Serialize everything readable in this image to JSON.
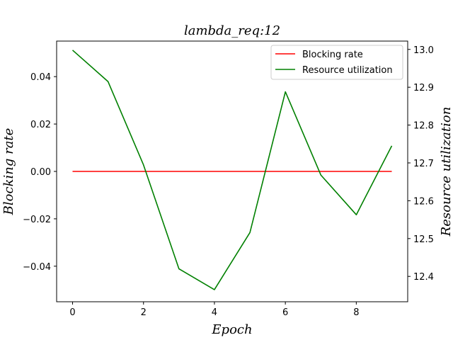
{
  "chart_data": {
    "type": "line",
    "title": "lambda_req:12",
    "xlabel": "Epoch",
    "ylabel_left": "Blocking rate",
    "ylabel_right": "Resource utilization",
    "x": [
      0,
      1,
      2,
      3,
      4,
      5,
      6,
      7,
      8,
      9
    ],
    "xlim": [
      -0.45,
      9.45
    ],
    "xticks": [
      0,
      2,
      4,
      6,
      8
    ],
    "ylim_left": [
      -0.055,
      0.055
    ],
    "yticks_left": [
      -0.04,
      -0.02,
      0.0,
      0.02,
      0.04
    ],
    "ylim_right": [
      12.333,
      13.022
    ],
    "yticks_right": [
      12.4,
      12.5,
      12.6,
      12.7,
      12.8,
      12.9,
      13.0
    ],
    "series": [
      {
        "name": "Blocking rate",
        "axis": "left",
        "color": "#ff0000",
        "values": [
          0,
          0,
          0,
          0,
          0,
          0,
          0,
          0,
          0,
          0
        ]
      },
      {
        "name": "Resource utilization",
        "axis": "right",
        "color": "#008000",
        "values": [
          12.998,
          12.915,
          12.695,
          12.42,
          12.365,
          12.516,
          12.888,
          12.668,
          12.563,
          12.745
        ]
      }
    ],
    "legend_position": "top-right",
    "grid": false
  }
}
